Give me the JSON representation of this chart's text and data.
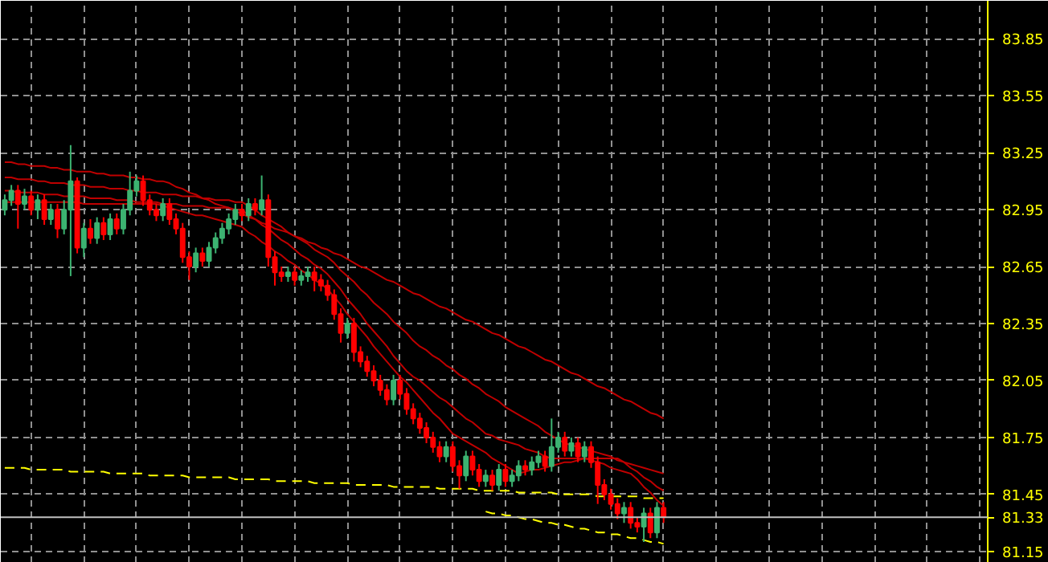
{
  "chart_data": {
    "type": "candlestick",
    "categories": [
      null,
      null,
      null,
      null,
      null,
      null,
      null,
      null,
      null,
      null,
      null,
      null,
      null,
      null,
      null,
      null,
      null,
      null,
      null,
      null,
      null,
      null,
      null,
      null,
      null,
      null,
      null,
      null,
      null,
      null,
      null,
      null,
      null,
      null,
      null,
      null,
      null,
      null,
      null,
      null,
      null,
      null,
      null,
      null,
      null,
      null,
      null,
      null,
      null,
      null,
      null,
      null,
      null,
      null,
      null,
      null,
      null,
      null,
      null,
      null,
      null,
      null,
      null,
      null,
      null,
      null,
      null,
      null,
      null,
      null,
      null,
      null,
      null,
      null,
      null,
      null,
      null,
      null,
      null,
      null,
      null,
      null,
      null,
      null,
      null,
      null,
      null,
      null,
      null,
      null,
      null,
      null,
      null,
      null,
      null,
      null,
      null,
      null,
      null,
      null,
      null
    ],
    "ohlc": [
      [
        82.95,
        83.03,
        82.92,
        83.0
      ],
      [
        83.0,
        83.08,
        82.97,
        83.05
      ],
      [
        83.05,
        83.08,
        82.85,
        82.98
      ],
      [
        82.98,
        83.06,
        82.95,
        83.02
      ],
      [
        83.02,
        83.05,
        82.92,
        82.95
      ],
      [
        82.95,
        83.03,
        82.9,
        83.0
      ],
      [
        83.0,
        83.03,
        82.87,
        82.9
      ],
      [
        82.9,
        82.98,
        82.87,
        82.95
      ],
      [
        82.95,
        82.98,
        82.8,
        82.85
      ],
      [
        82.85,
        83.0,
        82.82,
        82.95
      ],
      [
        82.95,
        83.29,
        82.6,
        83.1
      ],
      [
        83.1,
        83.12,
        82.72,
        82.75
      ],
      [
        82.75,
        82.88,
        82.7,
        82.85
      ],
      [
        82.85,
        82.9,
        82.77,
        82.8
      ],
      [
        82.8,
        82.91,
        82.77,
        82.88
      ],
      [
        82.88,
        82.91,
        82.79,
        82.82
      ],
      [
        82.82,
        82.93,
        82.79,
        82.9
      ],
      [
        82.9,
        82.93,
        82.82,
        82.85
      ],
      [
        82.85,
        82.98,
        82.82,
        82.95
      ],
      [
        82.95,
        83.15,
        82.92,
        83.05
      ],
      [
        83.05,
        83.13,
        83.02,
        83.1
      ],
      [
        83.1,
        83.13,
        82.97,
        83.0
      ],
      [
        83.0,
        83.03,
        82.92,
        82.95
      ],
      [
        82.95,
        82.98,
        82.89,
        82.92
      ],
      [
        82.92,
        83.01,
        82.89,
        82.98
      ],
      [
        82.98,
        83.01,
        82.87,
        82.9
      ],
      [
        82.9,
        82.93,
        82.82,
        82.85
      ],
      [
        82.85,
        82.88,
        82.67,
        82.7
      ],
      [
        82.7,
        82.73,
        82.58,
        82.65
      ],
      [
        82.65,
        82.75,
        82.62,
        82.72
      ],
      [
        82.72,
        82.75,
        82.65,
        82.68
      ],
      [
        82.68,
        82.78,
        82.65,
        82.75
      ],
      [
        82.75,
        82.83,
        82.72,
        82.8
      ],
      [
        82.8,
        82.88,
        82.77,
        82.85
      ],
      [
        82.85,
        82.93,
        82.82,
        82.9
      ],
      [
        82.9,
        82.98,
        82.87,
        82.95
      ],
      [
        82.95,
        82.98,
        82.89,
        82.92
      ],
      [
        82.92,
        83.01,
        82.89,
        82.98
      ],
      [
        82.98,
        83.01,
        82.92,
        82.95
      ],
      [
        82.95,
        83.13,
        82.92,
        83.0
      ],
      [
        83.0,
        83.03,
        82.65,
        82.7
      ],
      [
        82.7,
        82.73,
        82.55,
        82.62
      ],
      [
        82.62,
        82.65,
        82.57,
        82.6
      ],
      [
        82.6,
        82.65,
        82.57,
        82.62
      ],
      [
        82.62,
        82.65,
        82.55,
        82.58
      ],
      [
        82.58,
        82.63,
        82.55,
        82.6
      ],
      [
        82.6,
        82.65,
        82.57,
        82.62
      ],
      [
        82.62,
        82.65,
        82.52,
        82.58
      ],
      [
        82.58,
        82.61,
        82.52,
        82.55
      ],
      [
        82.55,
        82.58,
        82.47,
        82.5
      ],
      [
        82.5,
        82.53,
        82.37,
        82.4
      ],
      [
        82.4,
        82.43,
        82.25,
        82.3
      ],
      [
        82.3,
        82.38,
        82.27,
        82.35
      ],
      [
        82.35,
        82.38,
        82.15,
        82.2
      ],
      [
        82.2,
        82.23,
        82.12,
        82.15
      ],
      [
        82.15,
        82.18,
        82.07,
        82.1
      ],
      [
        82.1,
        82.13,
        82.02,
        82.05
      ],
      [
        82.05,
        82.08,
        81.97,
        82.0
      ],
      [
        82.0,
        82.03,
        81.92,
        81.95
      ],
      [
        81.95,
        82.08,
        81.92,
        82.05
      ],
      [
        82.05,
        82.08,
        81.95,
        81.98
      ],
      [
        81.98,
        82.01,
        81.87,
        81.9
      ],
      [
        81.9,
        81.93,
        81.82,
        81.85
      ],
      [
        81.85,
        81.88,
        81.77,
        81.8
      ],
      [
        81.8,
        81.83,
        81.72,
        81.75
      ],
      [
        81.75,
        81.78,
        81.67,
        81.7
      ],
      [
        81.7,
        81.73,
        81.62,
        81.65
      ],
      [
        81.65,
        81.73,
        81.62,
        81.7
      ],
      [
        81.7,
        81.73,
        81.57,
        81.6
      ],
      [
        81.6,
        81.63,
        81.48,
        81.55
      ],
      [
        81.55,
        81.68,
        81.52,
        81.65
      ],
      [
        81.65,
        81.68,
        81.55,
        81.58
      ],
      [
        81.58,
        81.61,
        81.49,
        81.52
      ],
      [
        81.52,
        81.58,
        81.49,
        81.55
      ],
      [
        81.55,
        81.58,
        81.47,
        81.5
      ],
      [
        81.5,
        81.61,
        81.47,
        81.58
      ],
      [
        81.58,
        81.61,
        81.49,
        81.52
      ],
      [
        81.52,
        81.58,
        81.49,
        81.55
      ],
      [
        81.55,
        81.63,
        81.52,
        81.6
      ],
      [
        81.6,
        81.63,
        81.55,
        81.58
      ],
      [
        81.58,
        81.65,
        81.55,
        81.62
      ],
      [
        81.62,
        81.68,
        81.59,
        81.65
      ],
      [
        81.65,
        81.68,
        81.57,
        81.6
      ],
      [
        81.6,
        81.85,
        81.57,
        81.7
      ],
      [
        81.7,
        81.78,
        81.67,
        81.75
      ],
      [
        81.75,
        81.78,
        81.65,
        81.68
      ],
      [
        81.68,
        81.75,
        81.65,
        81.72
      ],
      [
        81.72,
        81.75,
        81.62,
        81.65
      ],
      [
        81.65,
        81.73,
        81.62,
        81.7
      ],
      [
        81.7,
        81.73,
        81.59,
        81.62
      ],
      [
        81.62,
        81.65,
        81.4,
        81.5
      ],
      [
        81.5,
        81.53,
        81.42,
        81.45
      ],
      [
        81.45,
        81.48,
        81.37,
        81.4
      ],
      [
        81.4,
        81.43,
        81.32,
        81.35
      ],
      [
        81.35,
        81.41,
        81.3,
        81.38
      ],
      [
        81.38,
        81.41,
        81.27,
        81.3
      ],
      [
        81.3,
        81.33,
        81.25,
        81.28
      ],
      [
        81.28,
        81.38,
        81.2,
        81.35
      ],
      [
        81.35,
        81.38,
        81.22,
        81.25
      ],
      [
        81.25,
        81.41,
        81.22,
        81.38
      ],
      [
        81.38,
        81.41,
        81.3,
        81.33
      ]
    ],
    "colors": [
      "#3cb371",
      "#3cb371",
      "#ff0000",
      "#3cb371",
      "#ff0000",
      "#3cb371",
      "#ff0000",
      "#3cb371",
      "#ff0000",
      "#3cb371",
      "#3cb371",
      "#ff0000",
      "#3cb371",
      "#ff0000",
      "#3cb371",
      "#ff0000",
      "#3cb371",
      "#ff0000",
      "#3cb371",
      "#3cb371",
      "#3cb371",
      "#ff0000",
      "#ff0000",
      "#ff0000",
      "#3cb371",
      "#ff0000",
      "#ff0000",
      "#ff0000",
      "#ff0000",
      "#3cb371",
      "#ff0000",
      "#3cb371",
      "#3cb371",
      "#3cb371",
      "#3cb371",
      "#3cb371",
      "#ff0000",
      "#3cb371",
      "#ff0000",
      "#3cb371",
      "#ff0000",
      "#ff0000",
      "#ff0000",
      "#3cb371",
      "#ff0000",
      "#3cb371",
      "#3cb371",
      "#ff0000",
      "#ff0000",
      "#ff0000",
      "#ff0000",
      "#ff0000",
      "#3cb371",
      "#ff0000",
      "#ff0000",
      "#ff0000",
      "#ff0000",
      "#ff0000",
      "#ff0000",
      "#3cb371",
      "#ff0000",
      "#ff0000",
      "#ff0000",
      "#ff0000",
      "#ff0000",
      "#ff0000",
      "#ff0000",
      "#3cb371",
      "#ff0000",
      "#ff0000",
      "#3cb371",
      "#ff0000",
      "#ff0000",
      "#3cb371",
      "#ff0000",
      "#3cb371",
      "#ff0000",
      "#3cb371",
      "#3cb371",
      "#ff0000",
      "#3cb371",
      "#3cb371",
      "#ff0000",
      "#3cb371",
      "#3cb371",
      "#ff0000",
      "#3cb371",
      "#ff0000",
      "#3cb371",
      "#ff0000",
      "#ff0000",
      "#ff0000",
      "#ff0000",
      "#ff0000",
      "#3cb371",
      "#ff0000",
      "#ff0000",
      "#3cb371",
      "#ff0000",
      "#3cb371",
      "#ff0000"
    ],
    "series": [
      {
        "type": "line",
        "color": "#c00000",
        "values": [
          83.2,
          83.2,
          83.19,
          83.19,
          83.18,
          83.18,
          83.18,
          83.17,
          83.17,
          83.16,
          83.16,
          83.15,
          83.15,
          83.15,
          83.14,
          83.14,
          83.13,
          83.13,
          83.13,
          83.12,
          83.12,
          83.11,
          83.11,
          83.1,
          83.1,
          83.09,
          83.07,
          83.06,
          83.04,
          83.03,
          83.01,
          83.0,
          82.98,
          82.97,
          82.96,
          82.94,
          82.93,
          82.91,
          82.9,
          82.88,
          82.87,
          82.85,
          82.84,
          82.83,
          82.81,
          82.8,
          82.78,
          82.77,
          82.75,
          82.74,
          82.72,
          82.71,
          82.69,
          82.67,
          82.65,
          82.64,
          82.62,
          82.6,
          82.58,
          82.57,
          82.55,
          82.53,
          82.51,
          82.5,
          82.48,
          82.46,
          82.44,
          82.43,
          82.41,
          82.39,
          82.37,
          82.36,
          82.34,
          82.32,
          82.3,
          82.29,
          82.27,
          82.25,
          82.23,
          82.22,
          82.2,
          82.18,
          82.16,
          82.15,
          82.13,
          82.11,
          82.09,
          82.08,
          82.06,
          82.04,
          82.02,
          82.01,
          81.99,
          81.97,
          81.95,
          81.94,
          81.92,
          81.9,
          81.88,
          81.87,
          81.85
        ]
      },
      {
        "type": "line",
        "color": "#c00000",
        "values": [
          83.12,
          83.12,
          83.11,
          83.11,
          83.11,
          83.1,
          83.1,
          83.09,
          83.09,
          83.09,
          83.08,
          83.08,
          83.08,
          83.07,
          83.07,
          83.07,
          83.06,
          83.06,
          83.06,
          83.05,
          83.05,
          83.04,
          83.04,
          83.04,
          83.03,
          83.03,
          83.03,
          83.02,
          83.02,
          83.02,
          83.01,
          83.01,
          83.0,
          83.0,
          83.0,
          82.99,
          82.99,
          82.97,
          82.95,
          82.92,
          82.9,
          82.88,
          82.86,
          82.83,
          82.81,
          82.79,
          82.77,
          82.74,
          82.72,
          82.7,
          82.67,
          82.63,
          82.6,
          82.57,
          82.53,
          82.5,
          82.46,
          82.43,
          82.4,
          82.36,
          82.33,
          82.3,
          82.26,
          82.23,
          82.21,
          82.18,
          82.16,
          82.13,
          82.11,
          82.08,
          82.06,
          82.03,
          82.01,
          81.98,
          81.96,
          81.94,
          81.91,
          81.89,
          81.87,
          81.85,
          81.83,
          81.81,
          81.78,
          81.76,
          81.74,
          81.72,
          81.71,
          81.7,
          81.69,
          81.68,
          81.67,
          81.66,
          81.65,
          81.63,
          81.62,
          81.61,
          81.6,
          81.59,
          81.58,
          81.57,
          81.56
        ]
      },
      {
        "type": "line",
        "color": "#c00000",
        "values": [
          83.05,
          83.05,
          83.04,
          83.04,
          83.04,
          83.04,
          83.03,
          83.03,
          83.03,
          83.02,
          83.02,
          83.02,
          83.02,
          83.01,
          83.01,
          83.01,
          83.01,
          83.0,
          83.0,
          83.0,
          82.99,
          82.99,
          82.99,
          82.99,
          82.98,
          82.98,
          82.98,
          82.97,
          82.97,
          82.97,
          82.97,
          82.96,
          82.96,
          82.96,
          82.96,
          82.95,
          82.95,
          82.92,
          82.9,
          82.87,
          82.85,
          82.82,
          82.79,
          82.77,
          82.74,
          82.71,
          82.69,
          82.66,
          82.64,
          82.61,
          82.57,
          82.53,
          82.48,
          82.44,
          82.4,
          82.35,
          82.31,
          82.27,
          82.23,
          82.18,
          82.14,
          82.1,
          82.07,
          82.05,
          82.02,
          81.99,
          81.96,
          81.94,
          81.91,
          81.88,
          81.85,
          81.83,
          81.8,
          81.77,
          81.76,
          81.74,
          81.73,
          81.72,
          81.71,
          81.69,
          81.68,
          81.67,
          81.65,
          81.64,
          81.64,
          81.64,
          81.64,
          81.64,
          81.64,
          81.64,
          81.64,
          81.64,
          81.64,
          81.64,
          81.62,
          81.59,
          81.57,
          81.54,
          81.52,
          81.49,
          81.47
        ]
      },
      {
        "type": "line",
        "color": "#c00000",
        "values": [
          82.99,
          82.99,
          82.99,
          82.99,
          82.99,
          82.99,
          82.99,
          82.99,
          82.99,
          82.99,
          82.99,
          82.99,
          82.98,
          82.98,
          82.98,
          82.98,
          82.98,
          82.98,
          82.98,
          82.98,
          82.98,
          82.98,
          82.98,
          82.98,
          82.97,
          82.96,
          82.95,
          82.94,
          82.93,
          82.92,
          82.92,
          82.91,
          82.9,
          82.89,
          82.88,
          82.87,
          82.86,
          82.83,
          82.81,
          82.78,
          82.76,
          82.73,
          82.71,
          82.68,
          82.66,
          82.63,
          82.61,
          82.58,
          82.56,
          82.53,
          82.49,
          82.45,
          82.4,
          82.36,
          82.32,
          82.28,
          82.23,
          82.19,
          82.15,
          82.11,
          82.07,
          82.04,
          82.0,
          81.96,
          81.92,
          81.88,
          81.85,
          81.81,
          81.77,
          81.75,
          81.73,
          81.71,
          81.69,
          81.67,
          81.64,
          81.62,
          81.6,
          81.58,
          81.56,
          81.57,
          81.58,
          81.58,
          81.59,
          81.6,
          81.61,
          81.62,
          81.62,
          81.63,
          81.64,
          81.63,
          81.62,
          81.61,
          81.59,
          81.58,
          81.57,
          81.56,
          81.53,
          81.49,
          81.46,
          81.42,
          81.39
        ]
      },
      {
        "type": "line",
        "color": "#ffff00",
        "line_style": "dashed",
        "values": [
          81.59,
          81.59,
          81.59,
          81.59,
          81.58,
          81.58,
          81.58,
          81.58,
          81.58,
          81.58,
          81.57,
          81.57,
          81.57,
          81.57,
          81.57,
          81.57,
          81.56,
          81.56,
          81.56,
          81.56,
          81.56,
          81.56,
          81.55,
          81.55,
          81.55,
          81.55,
          81.55,
          81.55,
          81.54,
          81.54,
          81.54,
          81.54,
          81.54,
          81.54,
          81.54,
          81.53,
          81.53,
          81.53,
          81.53,
          81.53,
          81.53,
          81.52,
          81.52,
          81.52,
          81.52,
          81.52,
          81.52,
          81.51,
          81.51,
          81.51,
          81.51,
          81.51,
          81.51,
          81.5,
          81.5,
          81.5,
          81.5,
          81.5,
          81.5,
          81.49,
          81.49,
          81.49,
          81.49,
          81.49,
          81.49,
          81.49,
          81.48,
          81.48,
          81.48,
          81.48,
          81.48,
          81.48,
          81.47,
          81.47,
          81.47,
          81.47,
          81.47,
          81.47,
          81.46,
          81.46,
          81.46,
          81.46,
          81.46,
          81.46,
          81.45,
          81.45,
          81.45,
          81.45,
          81.45,
          81.45,
          81.44,
          81.44,
          81.44,
          81.44,
          81.44,
          81.44,
          81.44,
          81.43,
          81.43,
          81.43,
          81.43
        ]
      },
      {
        "type": "line",
        "color": "#ffff00",
        "line_style": "dashed",
        "values": [
          null,
          null,
          null,
          null,
          null,
          null,
          null,
          null,
          null,
          null,
          null,
          null,
          null,
          null,
          null,
          null,
          null,
          null,
          null,
          null,
          null,
          null,
          null,
          null,
          null,
          null,
          null,
          null,
          null,
          null,
          null,
          null,
          null,
          null,
          null,
          null,
          null,
          null,
          null,
          null,
          null,
          null,
          null,
          null,
          null,
          null,
          null,
          null,
          null,
          null,
          null,
          null,
          null,
          null,
          null,
          null,
          null,
          null,
          null,
          null,
          null,
          null,
          null,
          null,
          null,
          null,
          null,
          null,
          null,
          null,
          null,
          null,
          null,
          81.36,
          81.35,
          81.35,
          81.34,
          81.34,
          81.33,
          81.32,
          81.32,
          81.31,
          81.3,
          81.3,
          81.29,
          81.29,
          81.28,
          81.27,
          81.27,
          81.26,
          81.25,
          81.25,
          81.24,
          81.24,
          81.23,
          81.22,
          81.22,
          81.21,
          81.2,
          81.2,
          81.19
        ]
      }
    ],
    "ref_lines": [
      {
        "axis": "y",
        "value": 81.33,
        "label": "81.33",
        "color": "#c0c0c0"
      }
    ],
    "ylim": [
      81.09,
      84.05
    ],
    "yticks": [
      81.15,
      81.45,
      81.75,
      82.05,
      82.35,
      82.65,
      82.95,
      83.25,
      83.55,
      83.85
    ],
    "grid": true,
    "tick_labels": "y"
  }
}
